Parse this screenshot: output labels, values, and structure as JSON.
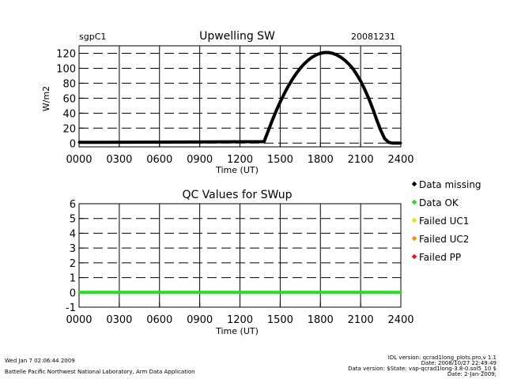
{
  "chart_data": [
    {
      "type": "line",
      "title": "Upwelling SW",
      "site": "sgpC1",
      "date": "20081231",
      "xlabel": "Time (UT)",
      "ylabel": "W/m2",
      "x_tick_labels": [
        "0000",
        "0300",
        "0600",
        "0900",
        "1200",
        "1500",
        "1800",
        "2100",
        "2400"
      ],
      "xlim": [
        0,
        2400
      ],
      "ylim": [
        -5,
        130
      ],
      "y_ticks": [
        0,
        20,
        40,
        60,
        80,
        100,
        120
      ],
      "grid": true,
      "series": [
        {
          "color": "#000000",
          "x": [
            0,
            1380,
            1410,
            1440,
            1470,
            1500,
            1530,
            1560,
            1590,
            1620,
            1650,
            1680,
            1710,
            1740,
            1770,
            1800,
            1830,
            1860,
            1890,
            1920,
            1950,
            1980,
            2010,
            2040,
            2070,
            2100,
            2130,
            2160,
            2190,
            2220,
            2250,
            2280,
            2310,
            2340,
            2370,
            2400
          ],
          "y": [
            1,
            2,
            16,
            30,
            43,
            55,
            66,
            76,
            85,
            93,
            100,
            106,
            111,
            115,
            118,
            120,
            121,
            121,
            120,
            118,
            115,
            111,
            106,
            100,
            92,
            83,
            72,
            60,
            46,
            31,
            17,
            6,
            1,
            0,
            0,
            0
          ]
        }
      ]
    },
    {
      "type": "line",
      "title": "QC Values for SWup",
      "xlabel": "Time (UT)",
      "x_tick_labels": [
        "0000",
        "0300",
        "0600",
        "0900",
        "1200",
        "1500",
        "1800",
        "2100",
        "2400"
      ],
      "xlim": [
        0,
        2400
      ],
      "ylim": [
        -1,
        6
      ],
      "y_ticks": [
        -1,
        0,
        1,
        2,
        3,
        4,
        5,
        6
      ],
      "grid": true,
      "series": [
        {
          "color": "#22dd22",
          "x": [
            0,
            2400
          ],
          "y": [
            0,
            0
          ]
        }
      ],
      "legend_position": "right",
      "legend": [
        {
          "label": "Data missing",
          "color": "#000000"
        },
        {
          "label": "Data OK",
          "color": "#22dd22"
        },
        {
          "label": "Failed UC1",
          "color": "#e6e600"
        },
        {
          "label": "Failed UC2",
          "color": "#ff8800"
        },
        {
          "label": "Failed PP",
          "color": "#ee1111"
        }
      ]
    }
  ],
  "footer": {
    "date_stamp": "Wed Jan  7 02:06:44 2009",
    "organization": "Battelle Pacific Northwest National Laboratory, Arm Data Application",
    "idl_version": "IDL version: qcrad1long_plots.pro,v 1.1",
    "idl_date": "Date: 2008/10/27 22:49:49",
    "data_version": "Data version: $State: vap-qcrad1long-3.8-0.sol5_10 $",
    "data_date": "Date: 2-Jan-2009;"
  }
}
